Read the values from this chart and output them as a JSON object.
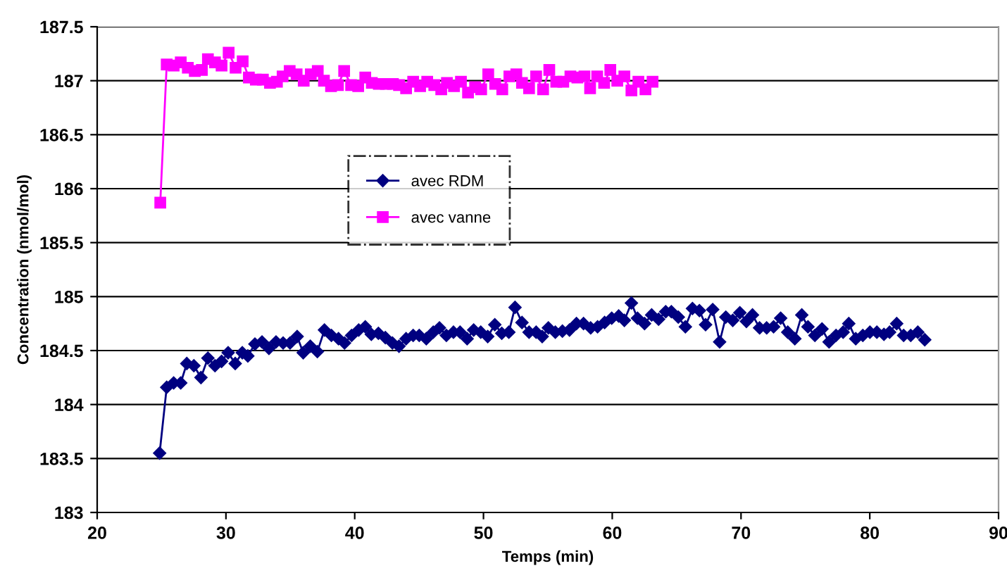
{
  "chart_data": {
    "type": "line",
    "xlabel": "Temps (min)",
    "ylabel": "Concentration (nmol/mol)",
    "xlim": [
      20,
      90
    ],
    "xticks": [
      20,
      30,
      40,
      50,
      60,
      70,
      80,
      90
    ],
    "ylim": [
      183,
      187.5
    ],
    "yticks": [
      183,
      183.5,
      184,
      184.5,
      185,
      185.5,
      186,
      186.5,
      187,
      187.5
    ],
    "grid": "y",
    "legend": "top left",
    "line_style": "solid",
    "series": [
      {
        "name": "avec RDM",
        "color": "#000080",
        "marker": "diamond",
        "x": [
          24.85,
          25.4,
          25.94,
          26.49,
          26.96,
          27.51,
          28.06,
          28.6,
          29.15,
          29.66,
          30.17,
          30.72,
          31.27,
          31.7,
          32.25,
          32.8,
          33.34,
          33.89,
          34.44,
          34.98,
          35.53,
          36.0,
          36.55,
          37.1,
          37.65,
          38.19,
          38.74,
          39.21,
          39.76,
          40.31,
          40.82,
          41.29,
          41.84,
          42.38,
          42.93,
          43.44,
          43.99,
          44.54,
          45.01,
          45.56,
          46.1,
          46.58,
          47.12,
          47.67,
          48.18,
          48.73,
          49.24,
          49.79,
          50.33,
          50.88,
          51.42,
          51.97,
          52.45,
          52.99,
          53.54,
          54.09,
          54.56,
          55.04,
          55.58,
          56.13,
          56.68,
          57.22,
          57.77,
          58.32,
          58.86,
          59.41,
          59.96,
          60.5,
          60.94,
          61.49,
          61.96,
          62.51,
          63.06,
          63.6,
          64.15,
          64.59,
          65.13,
          65.68,
          66.23,
          66.77,
          67.25,
          67.8,
          68.34,
          68.82,
          69.36,
          69.91,
          70.42,
          70.89,
          71.44,
          71.99,
          72.53,
          73.08,
          73.63,
          74.18,
          74.72,
          75.2,
          75.74,
          76.29,
          76.84,
          77.38,
          77.93,
          78.37,
          78.91,
          79.46,
          80.01,
          80.55,
          81.1,
          81.54,
          82.09,
          82.63,
          83.18,
          83.73,
          84.27
        ],
        "values": [
          183.55,
          184.16,
          184.2,
          184.2,
          184.38,
          184.36,
          184.25,
          184.43,
          184.36,
          184.4,
          184.48,
          184.38,
          184.48,
          184.45,
          184.56,
          184.58,
          184.52,
          184.58,
          184.57,
          184.57,
          184.63,
          184.48,
          184.54,
          184.49,
          184.69,
          184.64,
          184.61,
          184.57,
          184.64,
          184.69,
          184.72,
          184.65,
          184.66,
          184.62,
          184.57,
          184.54,
          184.61,
          184.64,
          184.64,
          184.61,
          184.67,
          184.71,
          184.64,
          184.67,
          184.67,
          184.61,
          184.69,
          184.67,
          184.63,
          184.74,
          184.66,
          184.67,
          184.9,
          184.76,
          184.67,
          184.67,
          184.63,
          184.71,
          184.67,
          184.68,
          184.69,
          184.75,
          184.75,
          184.71,
          184.72,
          184.76,
          184.8,
          184.82,
          184.78,
          184.94,
          184.8,
          184.75,
          184.83,
          184.79,
          184.86,
          184.86,
          184.81,
          184.72,
          184.89,
          184.87,
          184.74,
          184.88,
          184.58,
          184.81,
          184.78,
          184.85,
          184.77,
          184.83,
          184.71,
          184.71,
          184.72,
          184.8,
          184.67,
          184.61,
          184.83,
          184.72,
          184.64,
          184.7,
          184.58,
          184.64,
          184.67,
          184.75,
          184.61,
          184.64,
          184.67,
          184.67,
          184.65,
          184.67,
          184.75,
          184.64,
          184.64,
          184.67,
          184.6
        ]
      },
      {
        "name": "avec vanne",
        "color": "#ff00ff",
        "marker": "square",
        "x": [
          24.9,
          25.4,
          25.94,
          26.49,
          27.04,
          27.58,
          28.13,
          28.6,
          29.15,
          29.66,
          30.21,
          30.75,
          31.3,
          31.78,
          32.32,
          32.87,
          33.42,
          33.96,
          34.4,
          34.95,
          35.49,
          36.04,
          36.59,
          37.13,
          37.61,
          38.16,
          38.7,
          39.18,
          39.72,
          40.27,
          40.82,
          41.33,
          41.87,
          42.42,
          42.97,
          43.44,
          43.99,
          44.54,
          45.08,
          45.63,
          46.18,
          46.72,
          47.16,
          47.71,
          48.25,
          48.8,
          49.35,
          49.82,
          50.37,
          50.91,
          51.46,
          52.01,
          52.55,
          52.99,
          53.54,
          54.09,
          54.63,
          55.11,
          55.65,
          56.2,
          56.75,
          57.29,
          57.84,
          58.28,
          58.83,
          59.37,
          59.85,
          60.39,
          60.94,
          61.49,
          62.03,
          62.58,
          63.13
        ],
        "values": [
          185.87,
          187.15,
          187.14,
          187.17,
          187.12,
          187.09,
          187.1,
          187.2,
          187.17,
          187.14,
          187.26,
          187.12,
          187.18,
          187.03,
          187.01,
          187.01,
          186.98,
          186.99,
          187.04,
          187.09,
          187.06,
          187.0,
          187.06,
          187.09,
          187.0,
          186.95,
          186.96,
          187.09,
          186.96,
          186.95,
          187.03,
          186.98,
          186.97,
          186.97,
          186.97,
          186.96,
          186.93,
          186.99,
          186.95,
          186.99,
          186.96,
          186.92,
          186.98,
          186.95,
          186.99,
          186.89,
          186.94,
          186.92,
          187.06,
          186.97,
          186.92,
          187.04,
          187.06,
          186.98,
          186.93,
          187.04,
          186.92,
          187.1,
          186.99,
          186.99,
          187.04,
          187.03,
          187.04,
          186.93,
          187.04,
          186.98,
          187.1,
          187.0,
          187.04,
          186.91,
          186.99,
          186.92,
          186.99
        ]
      }
    ]
  }
}
